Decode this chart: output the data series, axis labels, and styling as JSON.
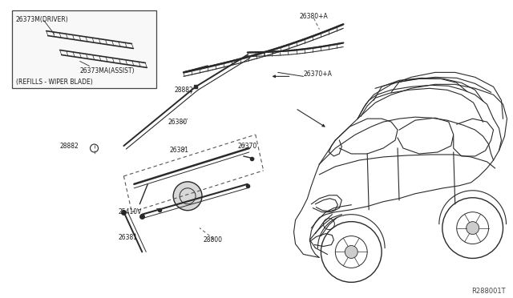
{
  "bg_color": "#f0f0f0",
  "line_color": "#2a2a2a",
  "text_color": "#1a1a1a",
  "ref_code": "R288001T",
  "inset_label1": "26373M(DRIVER)",
  "inset_label2": "26373MA(ASSIST)",
  "inset_bottom": "(REFILLS - WIPER BLADE)",
  "label_26380A": "26380+A",
  "label_26370A": "26370+A",
  "label_28882a": "28882",
  "label_26380": "26380",
  "label_26381a": "26381",
  "label_28882b": "28882",
  "label_26381b": "26381",
  "label_26370": "26370",
  "label_25410V": "25410V",
  "label_26381c": "26381",
  "label_28800": "28800"
}
